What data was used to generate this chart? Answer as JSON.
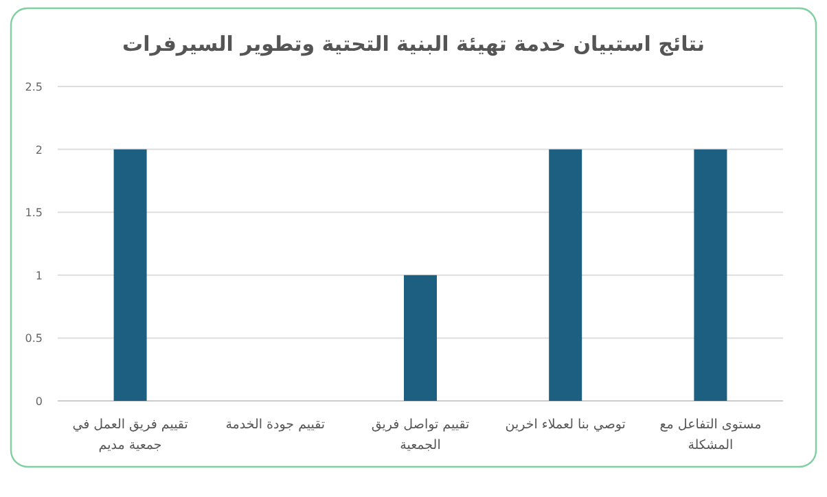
{
  "chart_data": {
    "type": "bar",
    "title": "نتائج استبيان خدمة تهيئة البنية التحتية وتطوير السيرفرات",
    "categories": [
      "تقييم فريق العمل في جمعية مديم",
      "تقييم جودة الخدمة",
      "تقييم تواصل فريق الجمعية",
      "توصي بنا لعملاء اخرين",
      "مستوى التفاعل مع المشكلة"
    ],
    "values": [
      2,
      0,
      1,
      2,
      2
    ],
    "color": "#1d5f80",
    "ylim": [
      0,
      2.5
    ],
    "yticks": [
      0,
      0.5,
      1,
      1.5,
      2,
      2.5
    ],
    "grid": "y",
    "legend": false
  }
}
